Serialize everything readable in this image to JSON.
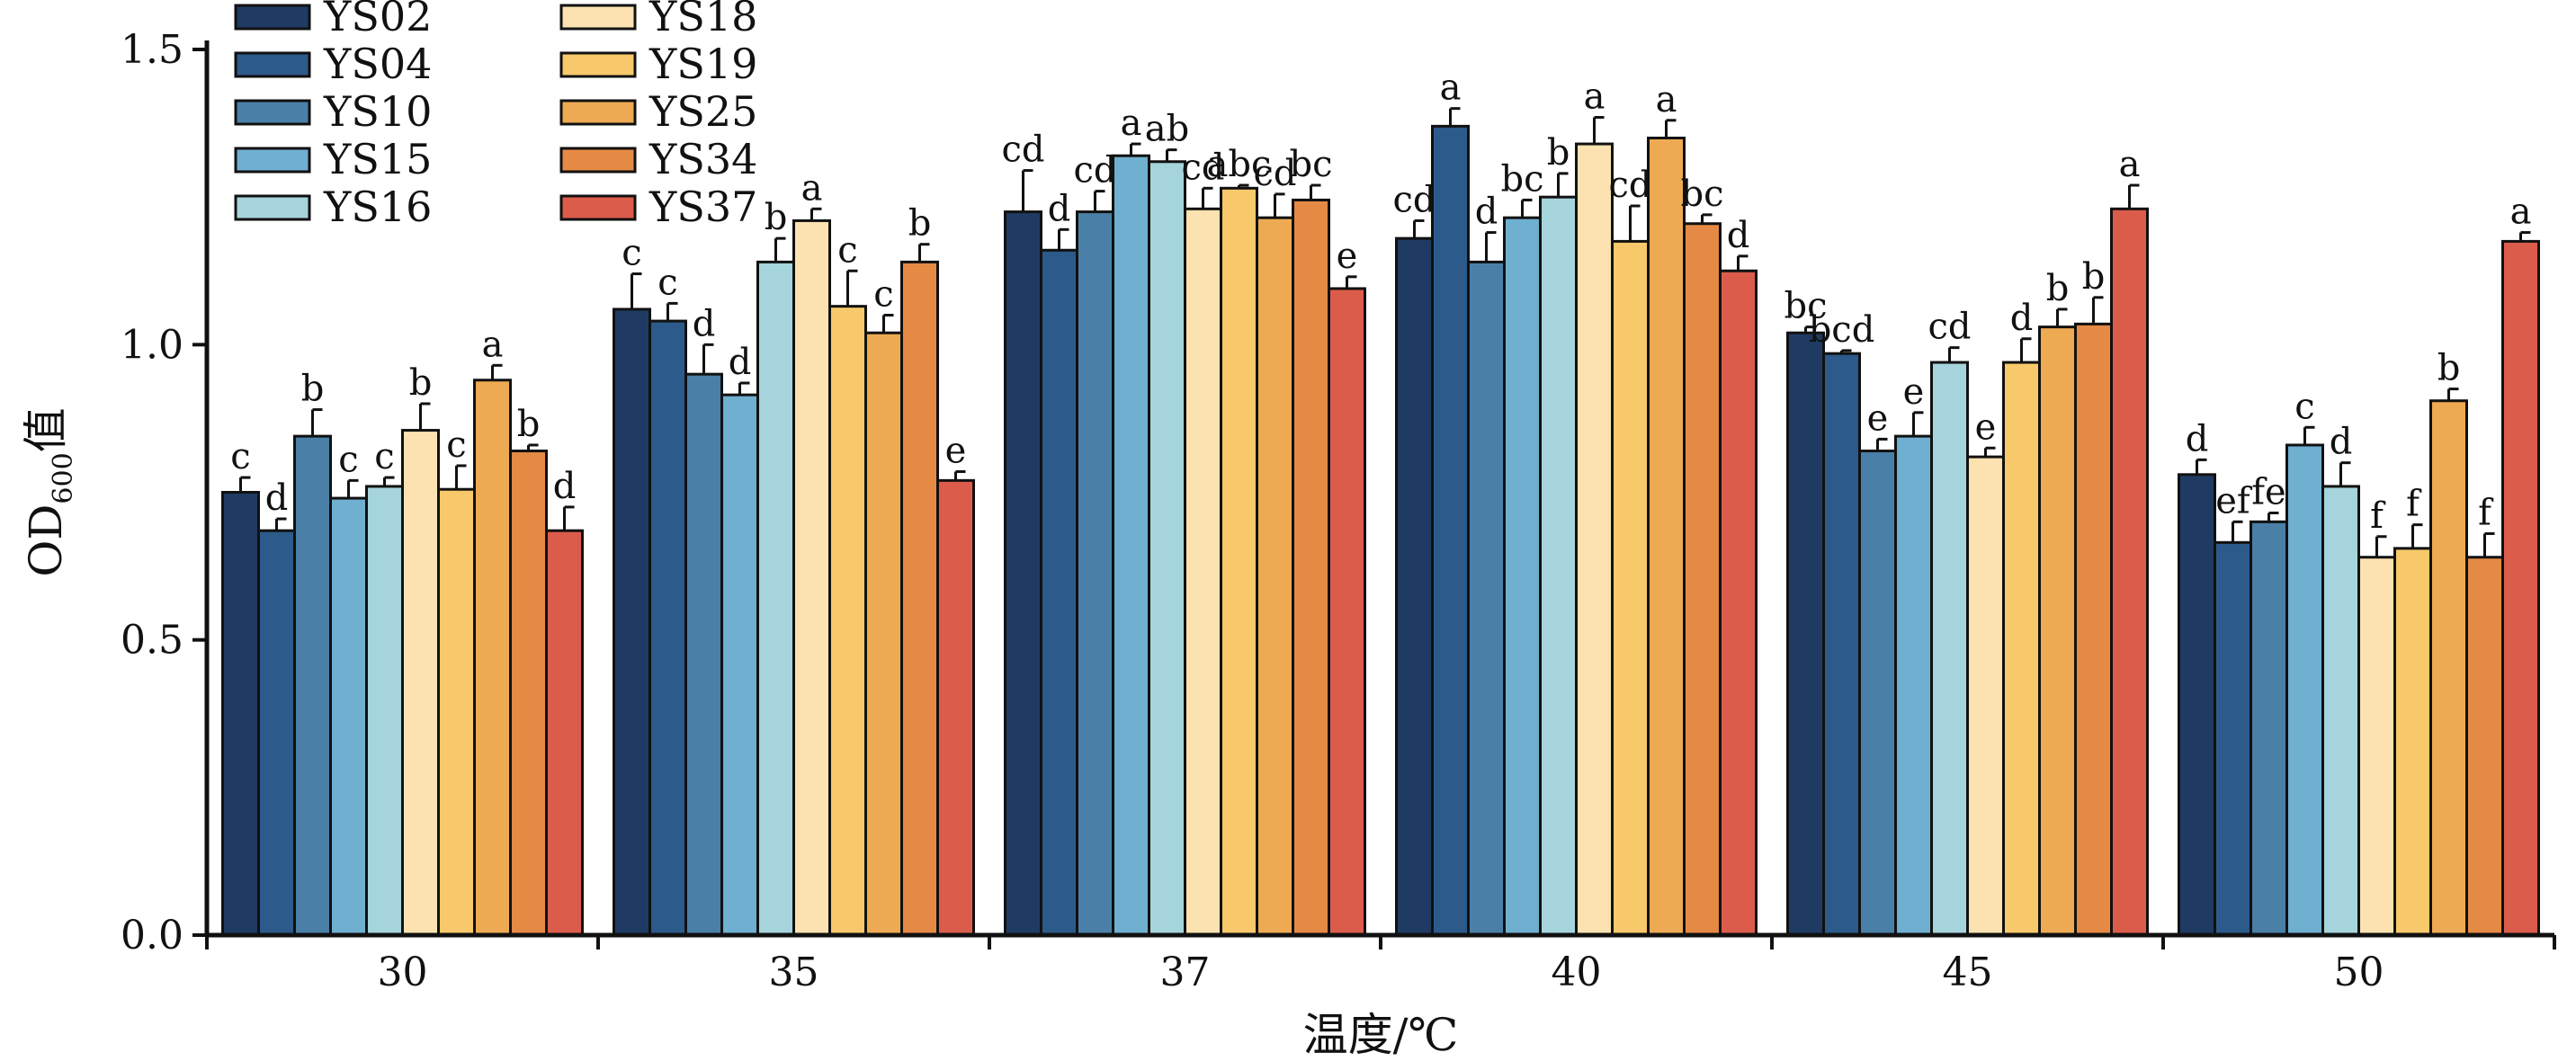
{
  "chart_data": {
    "type": "bar",
    "title": "",
    "xlabel": "温度/℃",
    "ylabel": {
      "main": "OD",
      "sub": "600",
      "suffix": "值"
    },
    "ylim": [
      0,
      1.5
    ],
    "yticks": [
      "0.0",
      "0.5",
      "1.0",
      "1.5"
    ],
    "categories": [
      "30",
      "35",
      "37",
      "40",
      "45",
      "50"
    ],
    "legend": {
      "placement": "top-left",
      "columns": 2
    },
    "series": [
      {
        "name": "YS02",
        "color": "#1f3b63",
        "values": [
          0.75,
          1.06,
          1.225,
          1.18,
          1.02,
          0.78
        ],
        "errors": [
          0.025,
          0.06,
          0.07,
          0.03,
          0.01,
          0.025
        ],
        "labels": [
          "c",
          "c",
          "cd",
          "cd",
          "bc",
          "d"
        ]
      },
      {
        "name": "YS04",
        "color": "#2c5a8a",
        "values": [
          0.685,
          1.04,
          1.16,
          1.37,
          0.985,
          0.665
        ],
        "errors": [
          0.02,
          0.03,
          0.035,
          0.03,
          0.005,
          0.035
        ],
        "labels": [
          "d",
          "c",
          "d",
          "a",
          "bcd",
          "ef"
        ]
      },
      {
        "name": "YS10",
        "color": "#4a80a8",
        "values": [
          0.845,
          0.95,
          1.225,
          1.14,
          0.82,
          0.7
        ],
        "errors": [
          0.045,
          0.05,
          0.035,
          0.05,
          0.02,
          0.015
        ],
        "labels": [
          "b",
          "d",
          "cd",
          "d",
          "e",
          "fe"
        ]
      },
      {
        "name": "YS15",
        "color": "#6fafd0",
        "values": [
          0.74,
          0.915,
          1.32,
          1.215,
          0.845,
          0.83
        ],
        "errors": [
          0.03,
          0.02,
          0.02,
          0.03,
          0.04,
          0.03
        ],
        "labels": [
          "c",
          "d",
          "a",
          "bc",
          "e",
          "c"
        ]
      },
      {
        "name": "YS16",
        "color": "#a6d4dc",
        "values": [
          0.76,
          1.14,
          1.31,
          1.25,
          0.97,
          0.76
        ],
        "errors": [
          0.015,
          0.04,
          0.02,
          0.04,
          0.025,
          0.04
        ],
        "labels": [
          "c",
          "b",
          "ab",
          "b",
          "cd",
          "d"
        ]
      },
      {
        "name": "YS18",
        "color": "#fbe2b0",
        "values": [
          0.855,
          1.21,
          1.23,
          1.34,
          0.81,
          0.64
        ],
        "errors": [
          0.045,
          0.02,
          0.035,
          0.045,
          0.015,
          0.035
        ],
        "labels": [
          "b",
          "a",
          "cd",
          "a",
          "e",
          "f"
        ]
      },
      {
        "name": "YS19",
        "color": "#f7c96a",
        "values": [
          0.755,
          1.065,
          1.265,
          1.175,
          0.97,
          0.655
        ],
        "errors": [
          0.04,
          0.06,
          0.005,
          0.06,
          0.04,
          0.04
        ],
        "labels": [
          "c",
          "c",
          "abc",
          "cd",
          "d",
          "f"
        ]
      },
      {
        "name": "YS25",
        "color": "#eeaa52",
        "values": [
          0.94,
          1.02,
          1.215,
          1.35,
          1.03,
          0.905
        ],
        "errors": [
          0.025,
          0.03,
          0.04,
          0.03,
          0.03,
          0.02
        ],
        "labels": [
          "a",
          "c",
          "cd",
          "a",
          "b",
          "b"
        ]
      },
      {
        "name": "YS34",
        "color": "#e58a45",
        "values": [
          0.82,
          1.14,
          1.245,
          1.205,
          1.035,
          0.64
        ],
        "errors": [
          0.01,
          0.03,
          0.025,
          0.015,
          0.045,
          0.04
        ],
        "labels": [
          "b",
          "b",
          "bc",
          "bc",
          "b",
          "f"
        ]
      },
      {
        "name": "YS37",
        "color": "#dc5c4c",
        "values": [
          0.685,
          0.77,
          1.095,
          1.125,
          1.23,
          1.175
        ],
        "errors": [
          0.04,
          0.015,
          0.02,
          0.025,
          0.04,
          0.015
        ],
        "labels": [
          "d",
          "e",
          "e",
          "d",
          "a",
          "a"
        ]
      }
    ]
  }
}
